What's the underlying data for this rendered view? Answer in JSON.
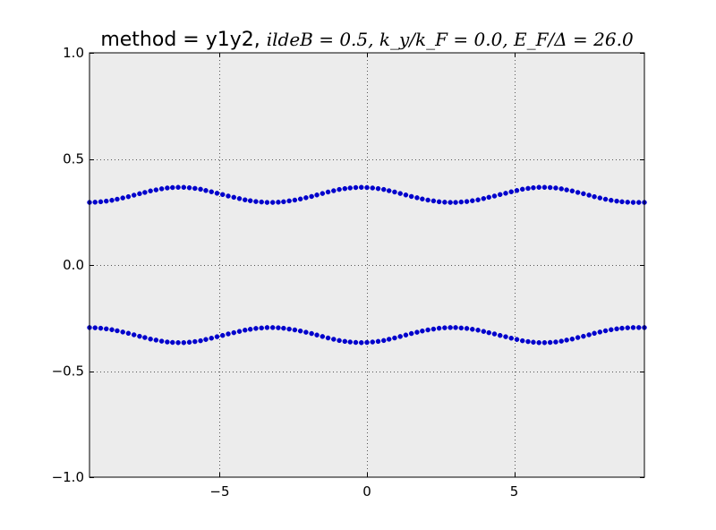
{
  "chart_data": {
    "type": "scatter",
    "title_prefix": "method = y1y2, ",
    "title_math": "ildeB = 0.5, k_y/k_F = 0.0, E_F/Δ = 26.0",
    "xlabel": "",
    "ylabel": "",
    "xlim": [
      -9.42,
      9.42
    ],
    "ylim": [
      -1.0,
      1.0
    ],
    "xticks": [
      -5,
      0,
      5
    ],
    "xtick_labels": [
      "−5",
      "0",
      "5"
    ],
    "yticks": [
      -1.0,
      -0.5,
      0.0,
      0.5,
      1.0
    ],
    "ytick_labels": [
      "−1.0",
      "−0.5",
      "0.0",
      "0.5",
      "1.0"
    ],
    "grid": true,
    "colors": {
      "axes_bg": "#ececec",
      "marker": "#0000cc",
      "grid": "#555555"
    },
    "series": [
      {
        "x": [
          -9.42,
          -9.23,
          -9.04,
          -8.85,
          -8.66,
          -8.48,
          -8.29,
          -8.1,
          -7.91,
          -7.72,
          -7.54,
          -7.35,
          -7.16,
          -6.97,
          -6.78,
          -6.6,
          -6.41,
          -6.22,
          -6.03,
          -5.84,
          -5.65,
          -5.47,
          -5.28,
          -5.09,
          -4.9,
          -4.71,
          -4.52,
          -4.33,
          -4.14,
          -3.96,
          -3.77,
          -3.58,
          -3.39,
          -3.2,
          -3.01,
          -2.83,
          -2.64,
          -2.45,
          -2.26,
          -2.07,
          -1.88,
          -1.7,
          -1.51,
          -1.32,
          -1.13,
          -0.94,
          -0.75,
          -0.57,
          -0.38,
          -0.19,
          0.0,
          0.19,
          0.38,
          0.57,
          0.75,
          0.94,
          1.13,
          1.32,
          1.51,
          1.7,
          1.88,
          2.07,
          2.26,
          2.45,
          2.64,
          2.83,
          3.01,
          3.2,
          3.39,
          3.58,
          3.77,
          3.96,
          4.14,
          4.33,
          4.52,
          4.71,
          4.9,
          5.09,
          5.28,
          5.47,
          5.65,
          5.84,
          6.03,
          6.22,
          6.41,
          6.6,
          6.78,
          6.97,
          7.16,
          7.35,
          7.54,
          7.72,
          7.91,
          8.1,
          8.29,
          8.48,
          8.66,
          8.85,
          9.04,
          9.23,
          9.42
        ],
        "y": [
          0.295,
          0.296,
          0.298,
          0.301,
          0.305,
          0.31,
          0.316,
          0.322,
          0.329,
          0.336,
          0.342,
          0.349,
          0.354,
          0.359,
          0.363,
          0.365,
          0.366,
          0.366,
          0.364,
          0.361,
          0.357,
          0.351,
          0.345,
          0.338,
          0.332,
          0.325,
          0.319,
          0.313,
          0.307,
          0.303,
          0.299,
          0.297,
          0.295,
          0.295,
          0.296,
          0.298,
          0.302,
          0.306,
          0.311,
          0.317,
          0.323,
          0.33,
          0.337,
          0.344,
          0.35,
          0.356,
          0.36,
          0.363,
          0.365,
          0.366,
          0.365,
          0.363,
          0.36,
          0.356,
          0.35,
          0.344,
          0.337,
          0.33,
          0.323,
          0.317,
          0.311,
          0.306,
          0.302,
          0.298,
          0.296,
          0.295,
          0.295,
          0.297,
          0.299,
          0.303,
          0.307,
          0.313,
          0.319,
          0.325,
          0.332,
          0.338,
          0.345,
          0.351,
          0.357,
          0.361,
          0.364,
          0.366,
          0.366,
          0.365,
          0.363,
          0.359,
          0.354,
          0.349,
          0.342,
          0.336,
          0.329,
          0.322,
          0.316,
          0.31,
          0.305,
          0.301,
          0.298,
          0.296,
          0.295,
          0.295,
          0.295
        ]
      },
      {
        "x": [
          -9.42,
          -9.23,
          -9.04,
          -8.85,
          -8.66,
          -8.48,
          -8.29,
          -8.1,
          -7.91,
          -7.72,
          -7.54,
          -7.35,
          -7.16,
          -6.97,
          -6.78,
          -6.6,
          -6.41,
          -6.22,
          -6.03,
          -5.84,
          -5.65,
          -5.47,
          -5.28,
          -5.09,
          -4.9,
          -4.71,
          -4.52,
          -4.33,
          -4.14,
          -3.96,
          -3.77,
          -3.58,
          -3.39,
          -3.2,
          -3.01,
          -2.83,
          -2.64,
          -2.45,
          -2.26,
          -2.07,
          -1.88,
          -1.7,
          -1.51,
          -1.32,
          -1.13,
          -0.94,
          -0.75,
          -0.57,
          -0.38,
          -0.19,
          0.0,
          0.19,
          0.38,
          0.57,
          0.75,
          0.94,
          1.13,
          1.32,
          1.51,
          1.7,
          1.88,
          2.07,
          2.26,
          2.45,
          2.64,
          2.83,
          3.01,
          3.2,
          3.39,
          3.58,
          3.77,
          3.96,
          4.14,
          4.33,
          4.52,
          4.71,
          4.9,
          5.09,
          5.28,
          5.47,
          5.65,
          5.84,
          6.03,
          6.22,
          6.41,
          6.6,
          6.78,
          6.97,
          7.16,
          7.35,
          7.54,
          7.72,
          7.91,
          8.1,
          8.29,
          8.48,
          8.66,
          8.85,
          9.04,
          9.23,
          9.42
        ],
        "y": [
          -0.295,
          -0.296,
          -0.298,
          -0.301,
          -0.305,
          -0.31,
          -0.316,
          -0.322,
          -0.329,
          -0.336,
          -0.342,
          -0.349,
          -0.354,
          -0.359,
          -0.363,
          -0.365,
          -0.366,
          -0.366,
          -0.364,
          -0.361,
          -0.357,
          -0.351,
          -0.345,
          -0.338,
          -0.332,
          -0.325,
          -0.319,
          -0.313,
          -0.307,
          -0.303,
          -0.299,
          -0.297,
          -0.295,
          -0.295,
          -0.296,
          -0.298,
          -0.302,
          -0.306,
          -0.311,
          -0.317,
          -0.323,
          -0.33,
          -0.337,
          -0.344,
          -0.35,
          -0.356,
          -0.36,
          -0.363,
          -0.365,
          -0.366,
          -0.365,
          -0.363,
          -0.36,
          -0.356,
          -0.35,
          -0.344,
          -0.337,
          -0.33,
          -0.323,
          -0.317,
          -0.311,
          -0.306,
          -0.302,
          -0.298,
          -0.296,
          -0.295,
          -0.295,
          -0.297,
          -0.299,
          -0.303,
          -0.307,
          -0.313,
          -0.319,
          -0.325,
          -0.332,
          -0.338,
          -0.345,
          -0.351,
          -0.357,
          -0.361,
          -0.364,
          -0.366,
          -0.366,
          -0.365,
          -0.363,
          -0.359,
          -0.354,
          -0.349,
          -0.342,
          -0.336,
          -0.329,
          -0.322,
          -0.316,
          -0.31,
          -0.305,
          -0.301,
          -0.298,
          -0.296,
          -0.295,
          -0.295,
          -0.295
        ]
      }
    ]
  }
}
